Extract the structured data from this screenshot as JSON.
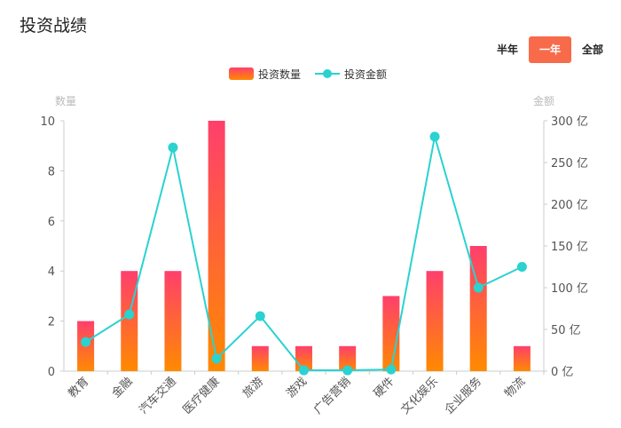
{
  "header": {
    "title": "投资战绩",
    "periods": [
      {
        "label": "半年",
        "active": false
      },
      {
        "label": "一年",
        "active": true
      },
      {
        "label": "全部",
        "active": false
      }
    ]
  },
  "chart_data": {
    "type": "bar+line",
    "categories": [
      "教育",
      "金融",
      "汽车交通",
      "医疗健康",
      "旅游",
      "游戏",
      "广告营销",
      "硬件",
      "文化娱乐",
      "企业服务",
      "物流"
    ],
    "series": [
      {
        "name": "投资数量",
        "type": "bar",
        "axis": "left",
        "values": [
          2,
          4,
          4,
          10,
          1,
          1,
          1,
          3,
          4,
          5,
          1
        ]
      },
      {
        "name": "投资金额",
        "type": "line",
        "axis": "right",
        "values": [
          35,
          68,
          268,
          15,
          66,
          1,
          1,
          2,
          281,
          100,
          125
        ]
      }
    ],
    "y_left": {
      "label": "数量",
      "min": 0,
      "max": 10,
      "ticks": [
        "0",
        "2",
        "4",
        "6",
        "8",
        "10"
      ]
    },
    "y_right": {
      "label": "金额",
      "min": 0,
      "max": 300,
      "ticks": [
        "0 亿",
        "50 亿",
        "100 亿",
        "150 亿",
        "200 亿",
        "250 亿",
        "300 亿"
      ]
    },
    "legend_position": "top-center",
    "colors": {
      "bar_top": "#ff3f6c",
      "bar_bottom": "#ff8a00",
      "line": "#2ad2d0",
      "axis": "#cccccc"
    }
  }
}
